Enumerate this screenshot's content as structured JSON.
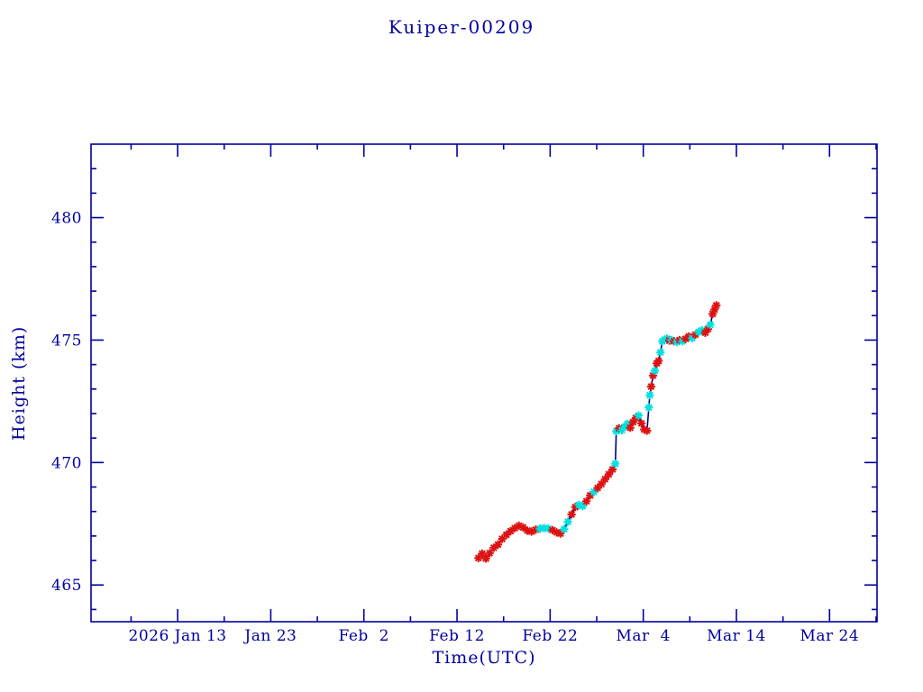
{
  "colors": {
    "background": "#ffffff",
    "axis_and_text": "#0000a0",
    "line": "#00008b",
    "marker_red": "#dd1111",
    "marker_cyan": "#00e0e0"
  },
  "chart_data": {
    "type": "line",
    "title": "Kuiper-00209",
    "xlabel": "Time(UTC)",
    "ylabel": "Height (km)",
    "legend": "none",
    "grid": false,
    "x_axis": {
      "unit": "day-of-year 2026 (Jan 1 = day 1)",
      "range": [
        3.7,
        88.1
      ],
      "major_ticks": [
        {
          "day": 13,
          "label": "2026 Jan 13"
        },
        {
          "day": 23,
          "label": "Jan 23"
        },
        {
          "day": 33,
          "label": "Feb  2"
        },
        {
          "day": 43,
          "label": "Feb 12"
        },
        {
          "day": 53,
          "label": "Feb 22"
        },
        {
          "day": 63,
          "label": "Mar  4"
        },
        {
          "day": 73,
          "label": "Mar 14"
        },
        {
          "day": 83,
          "label": "Mar 24"
        }
      ],
      "minor_tick_step": 5
    },
    "y_axis": {
      "range": [
        463.5,
        483.0
      ],
      "major_ticks": [
        465,
        470,
        475,
        480
      ],
      "minor_tick_step": 1
    },
    "points": [
      {
        "day": 45.3,
        "km": 466.1,
        "c": "red"
      },
      {
        "day": 45.7,
        "km": 466.28,
        "c": "red"
      },
      {
        "day": 46.1,
        "km": 466.08,
        "c": "red"
      },
      {
        "day": 46.5,
        "km": 466.3,
        "c": "red"
      },
      {
        "day": 46.95,
        "km": 466.52,
        "c": "red"
      },
      {
        "day": 47.4,
        "km": 466.65,
        "c": "red"
      },
      {
        "day": 47.85,
        "km": 466.88,
        "c": "red"
      },
      {
        "day": 48.3,
        "km": 467.05,
        "c": "red"
      },
      {
        "day": 48.75,
        "km": 467.2,
        "c": "red"
      },
      {
        "day": 49.2,
        "km": 467.32,
        "c": "red"
      },
      {
        "day": 49.65,
        "km": 467.42,
        "c": "red"
      },
      {
        "day": 50.1,
        "km": 467.35,
        "c": "red"
      },
      {
        "day": 50.55,
        "km": 467.22,
        "c": "red"
      },
      {
        "day": 51.0,
        "km": 467.18,
        "c": "red"
      },
      {
        "day": 51.45,
        "km": 467.26,
        "c": "red"
      },
      {
        "day": 51.9,
        "km": 467.3,
        "c": "cyan"
      },
      {
        "day": 52.35,
        "km": 467.33,
        "c": "cyan"
      },
      {
        "day": 52.8,
        "km": 467.3,
        "c": "cyan"
      },
      {
        "day": 53.25,
        "km": 467.24,
        "c": "red"
      },
      {
        "day": 53.7,
        "km": 467.15,
        "c": "red"
      },
      {
        "day": 54.1,
        "km": 467.1,
        "c": "red"
      },
      {
        "day": 54.5,
        "km": 467.28,
        "c": "cyan"
      },
      {
        "day": 54.9,
        "km": 467.58,
        "c": "cyan"
      },
      {
        "day": 55.3,
        "km": 467.88,
        "c": "red"
      },
      {
        "day": 55.7,
        "km": 468.18,
        "c": "red"
      },
      {
        "day": 56.1,
        "km": 468.27,
        "c": "cyan"
      },
      {
        "day": 56.5,
        "km": 468.22,
        "c": "cyan"
      },
      {
        "day": 56.9,
        "km": 468.42,
        "c": "red"
      },
      {
        "day": 57.3,
        "km": 468.66,
        "c": "red"
      },
      {
        "day": 57.7,
        "km": 468.8,
        "c": "cyan"
      },
      {
        "day": 58.1,
        "km": 468.96,
        "c": "red"
      },
      {
        "day": 58.5,
        "km": 469.12,
        "c": "red"
      },
      {
        "day": 58.9,
        "km": 469.32,
        "c": "red"
      },
      {
        "day": 59.3,
        "km": 469.52,
        "c": "red"
      },
      {
        "day": 59.7,
        "km": 469.72,
        "c": "red"
      },
      {
        "day": 60.0,
        "km": 469.95,
        "c": "cyan"
      },
      {
        "day": 60.1,
        "km": 471.28,
        "c": "cyan"
      },
      {
        "day": 60.4,
        "km": 471.4,
        "c": "red"
      },
      {
        "day": 60.7,
        "km": 471.32,
        "c": "cyan"
      },
      {
        "day": 61.0,
        "km": 471.46,
        "c": "cyan"
      },
      {
        "day": 61.3,
        "km": 471.58,
        "c": "cyan"
      },
      {
        "day": 61.6,
        "km": 471.42,
        "c": "red"
      },
      {
        "day": 61.9,
        "km": 471.65,
        "c": "red"
      },
      {
        "day": 62.2,
        "km": 471.82,
        "c": "red"
      },
      {
        "day": 62.5,
        "km": 471.92,
        "c": "cyan"
      },
      {
        "day": 62.8,
        "km": 471.6,
        "c": "red"
      },
      {
        "day": 63.1,
        "km": 471.35,
        "c": "red"
      },
      {
        "day": 63.4,
        "km": 471.3,
        "c": "red"
      },
      {
        "day": 63.6,
        "km": 472.25,
        "c": "cyan"
      },
      {
        "day": 63.7,
        "km": 472.75,
        "c": "cyan"
      },
      {
        "day": 63.85,
        "km": 473.1,
        "c": "red"
      },
      {
        "day": 64.05,
        "km": 473.55,
        "c": "red"
      },
      {
        "day": 64.25,
        "km": 473.75,
        "c": "cyan"
      },
      {
        "day": 64.45,
        "km": 474.05,
        "c": "red"
      },
      {
        "day": 64.65,
        "km": 474.15,
        "c": "red"
      },
      {
        "day": 64.85,
        "km": 474.5,
        "c": "cyan"
      },
      {
        "day": 65.05,
        "km": 474.95,
        "c": "cyan"
      },
      {
        "day": 65.3,
        "km": 475.02,
        "c": "cyan"
      },
      {
        "day": 65.55,
        "km": 475.06,
        "c": "cyan"
      },
      {
        "day": 65.8,
        "km": 474.98,
        "c": "red"
      },
      {
        "day": 66.05,
        "km": 475.0,
        "c": "cyan"
      },
      {
        "day": 66.3,
        "km": 474.95,
        "c": "red"
      },
      {
        "day": 66.6,
        "km": 474.92,
        "c": "cyan"
      },
      {
        "day": 66.9,
        "km": 475.0,
        "c": "red"
      },
      {
        "day": 67.2,
        "km": 474.95,
        "c": "cyan"
      },
      {
        "day": 67.55,
        "km": 475.05,
        "c": "red"
      },
      {
        "day": 67.9,
        "km": 475.15,
        "c": "red"
      },
      {
        "day": 68.25,
        "km": 475.08,
        "c": "cyan"
      },
      {
        "day": 68.6,
        "km": 475.22,
        "c": "red"
      },
      {
        "day": 68.95,
        "km": 475.33,
        "c": "cyan"
      },
      {
        "day": 69.3,
        "km": 475.4,
        "c": "cyan"
      },
      {
        "day": 69.65,
        "km": 475.3,
        "c": "red"
      },
      {
        "day": 69.95,
        "km": 475.45,
        "c": "red"
      },
      {
        "day": 70.2,
        "km": 475.63,
        "c": "cyan"
      },
      {
        "day": 70.45,
        "km": 476.07,
        "c": "red"
      },
      {
        "day": 70.65,
        "km": 476.25,
        "c": "red"
      },
      {
        "day": 70.85,
        "km": 476.42,
        "c": "red"
      }
    ]
  }
}
